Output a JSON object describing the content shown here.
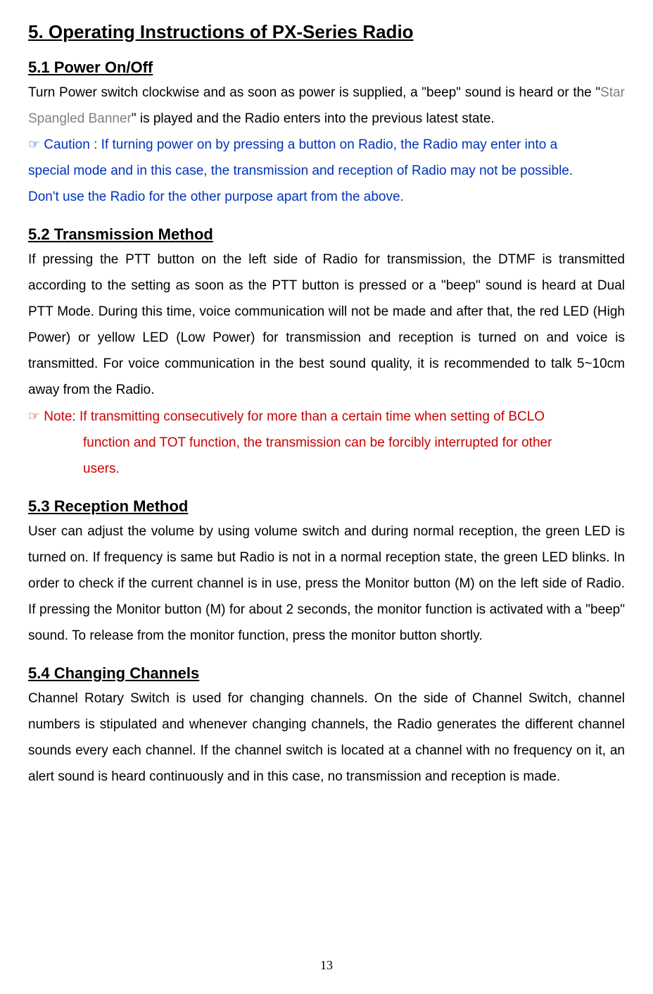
{
  "page": {
    "number": "13",
    "typography": {
      "body_font_size": 19,
      "heading_font_size": 26,
      "subheading_font_size": 22,
      "line_height": 1.95
    },
    "colors": {
      "text": "#000000",
      "grey": "#808080",
      "blue": "#0033bb",
      "red": "#cc0000",
      "background": "#ffffff"
    }
  },
  "main_heading": "5. Operating Instructions of PX-Series Radio",
  "sections": {
    "s51": {
      "heading": "5.1 Power On/Off",
      "line1_black": "Turn Power switch clockwise and as soon as power is supplied, a \"beep\" sound is heard or",
      "line2_black1": "the \"",
      "line2_grey": "Star Spangled Banner",
      "line2_black2": "\" is played and the Radio enters into the previous latest state.",
      "caution1": "☞ Caution : If turning power on by pressing a button on Radio, the Radio may enter into a",
      "caution2": "special mode and in this case, the transmission and reception of Radio may not be possible.",
      "caution3": "Don't use the Radio for the other purpose apart from the above."
    },
    "s52": {
      "heading": "5.2 Transmission Method",
      "body": "If pressing the PTT button on the left side of Radio for transmission, the DTMF is transmitted according to the setting as soon as the PTT button is pressed or a \"beep\" sound is heard at Dual PTT Mode. During this time, voice communication will not be made and after that, the red LED (High Power) or yellow LED (Low Power) for transmission and reception is turned on and voice is transmitted. For voice communication in the best sound quality, it is recommended to talk 5~10cm away from the Radio.",
      "note_line1": "☞ Note: If transmitting consecutively for more than a certain time when setting of BCLO",
      "note_line2": "function and TOT function, the transmission can be forcibly interrupted for other",
      "note_line3": "users."
    },
    "s53": {
      "heading": "5.3 Reception Method",
      "body": "User can adjust the volume by using volume switch and during normal reception, the green LED is turned on. If frequency is same but Radio is not in a normal reception state, the green LED blinks. In order to check if the current channel is in use, press the Monitor button (M) on the left side of Radio. If pressing the Monitor button (M) for about 2 seconds, the monitor function is activated with a \"beep\" sound. To release from the monitor function, press the monitor button shortly."
    },
    "s54": {
      "heading": "5.4 Changing Channels",
      "body": "Channel Rotary Switch is used for changing channels. On the side of Channel Switch, channel numbers is stipulated and whenever changing channels, the Radio generates the different channel sounds every each channel. If the channel switch is located at a channel   with no frequency on it, an alert sound is heard continuously and in this case, no transmission and reception is made."
    }
  }
}
